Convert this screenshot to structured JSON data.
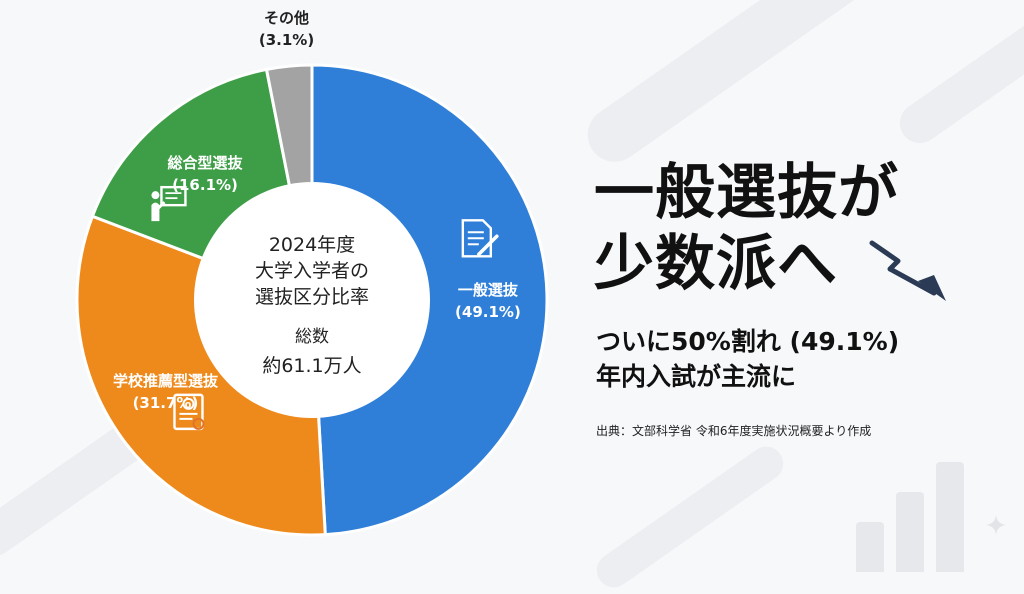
{
  "chart_data": {
    "type": "pie",
    "variant": "donut",
    "center": {
      "title_lines": [
        "2024年度",
        "大学入学者の",
        "選抜区分比率"
      ],
      "total_label": "総数",
      "total_value": "約61.1万人"
    },
    "slices": [
      {
        "name": "一般選抜",
        "value": 49.1,
        "label": "(49.1%)",
        "color": "#2f7fd8",
        "icon": "document-pen-icon",
        "label_color": "#ffffff"
      },
      {
        "name": "学校推薦型選抜",
        "value": 31.7,
        "label": "(31.7%)",
        "color": "#ee8a1c",
        "icon": "certificate-icon",
        "label_color": "#ffffff"
      },
      {
        "name": "総合型選抜",
        "value": 16.1,
        "label": "(16.1%)",
        "color": "#3d9e47",
        "icon": "presentation-icon",
        "label_color": "#ffffff"
      },
      {
        "name": "その他",
        "value": 3.1,
        "label": "(3.1%)",
        "color": "#a3a3a3",
        "icon": "",
        "label_color": "#222222"
      }
    ]
  },
  "headline": {
    "line1": "一般選抜が",
    "line2": "少数派へ"
  },
  "subheadline": {
    "line1": "ついに50%割れ (49.1%)",
    "line2": "年内入試が主流に"
  },
  "source": "出典：文部科学省 令和6年度実施状況概要より作成",
  "icons": {
    "trend": "downward-trend-arrow-icon",
    "sparkle": "sparkle-icon"
  }
}
